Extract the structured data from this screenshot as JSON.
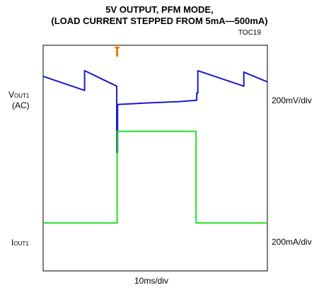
{
  "header": {
    "title_line1": "5V OUTPUT, PFM MODE,",
    "title_line2": "(LOAD CURRENT STEPPED FROM 5mA—500mA)",
    "figure_code": "TOC19"
  },
  "labels": {
    "vout_main": "V",
    "vout_sub": "OUT1",
    "vout_ac": "(AC)",
    "iout_main": "I",
    "iout_sub": "OUT1",
    "v_scale": "200mV/div",
    "i_scale": "200mA/div",
    "time_scale": "10ms/div"
  },
  "colors": {
    "voltage_trace": "#1a1acd",
    "current_trace": "#22e022",
    "trigger_marker": "#e07800",
    "frame": "#000000"
  },
  "chart_data": {
    "type": "line",
    "title": "5V OUTPUT, PFM MODE, (LOAD CURRENT STEPPED FROM 5mA—500mA)",
    "x_unit": "div",
    "x_scale": "10ms/div",
    "xlim": [
      0,
      10
    ],
    "ylim": [
      0,
      8
    ],
    "grid": false,
    "trigger_x": 3.3,
    "series": [
      {
        "name": "VOUT1 (AC)",
        "scale": "200mV/div",
        "points": [
          [
            0,
            6.9
          ],
          [
            1.85,
            6.4
          ],
          [
            1.85,
            7.1
          ],
          [
            3.28,
            6.55
          ],
          [
            3.28,
            4.2
          ],
          [
            3.32,
            4.2
          ],
          [
            3.32,
            5.9
          ],
          [
            4.5,
            5.95
          ],
          [
            6.0,
            6.0
          ],
          [
            6.85,
            6.05
          ],
          [
            6.85,
            6.3
          ],
          [
            6.9,
            6.3
          ],
          [
            6.9,
            7.1
          ],
          [
            8.95,
            6.55
          ],
          [
            8.95,
            7.05
          ],
          [
            10,
            6.7
          ]
        ]
      },
      {
        "name": "IOUT1",
        "scale": "200mA/div",
        "points": [
          [
            0,
            1.7
          ],
          [
            3.3,
            1.7
          ],
          [
            3.3,
            4.95
          ],
          [
            6.82,
            4.95
          ],
          [
            6.82,
            1.7
          ],
          [
            10,
            1.7
          ]
        ]
      }
    ]
  }
}
